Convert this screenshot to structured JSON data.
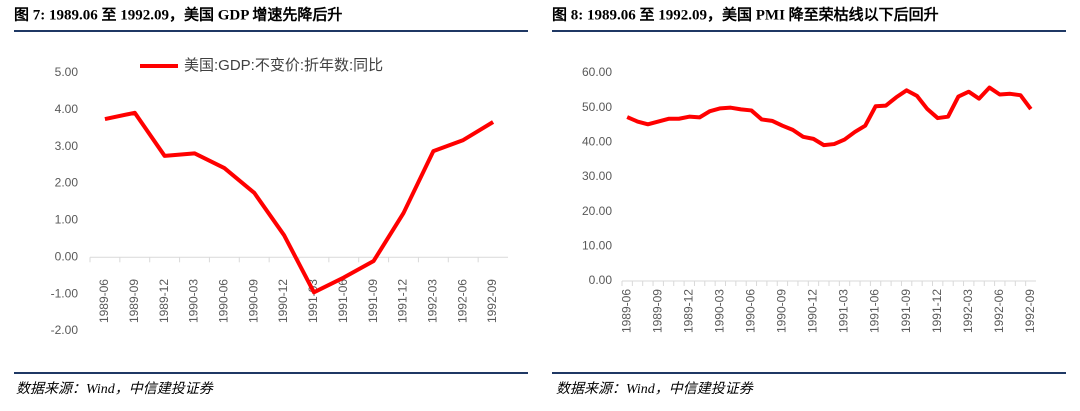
{
  "chart_data": [
    {
      "type": "line",
      "title": "图 7: 1989.06 至 1992.09，美国 GDP 增速先降后升",
      "source": "数据来源：Wind，中信建投证券",
      "categories": [
        "1989-06",
        "1989-09",
        "1989-12",
        "1990-03",
        "1990-06",
        "1990-09",
        "1990-12",
        "1991-03",
        "1991-06",
        "1991-09",
        "1991-12",
        "1992-03",
        "1992-06",
        "1992-09"
      ],
      "series": [
        {
          "name": "美国:GDP:不变价:折年数:同比",
          "color": "#ff0000",
          "values": [
            3.75,
            3.92,
            2.75,
            2.82,
            2.42,
            1.75,
            0.6,
            -0.95,
            -0.55,
            -0.1,
            1.2,
            2.88,
            3.18,
            3.67
          ]
        }
      ],
      "ylim": [
        -2,
        5
      ],
      "yticks": [
        {
          "value": -2,
          "label": "-2.00"
        },
        {
          "value": -1,
          "label": "-1.00"
        },
        {
          "value": 0,
          "label": "0.00"
        },
        {
          "value": 1,
          "label": "1.00"
        },
        {
          "value": 2,
          "label": "2.00"
        },
        {
          "value": 3,
          "label": "3.00"
        },
        {
          "value": 4,
          "label": "4.00"
        },
        {
          "value": 5,
          "label": "5.00"
        }
      ],
      "legend": "top"
    },
    {
      "type": "line",
      "title": "图 8: 1989.06 至 1992.09，美国 PMI 降至荣枯线以下后回升",
      "source": "数据来源：Wind，中信建投证券",
      "categories": [
        "1989-06",
        null,
        null,
        "1989-09",
        null,
        null,
        "1989-12",
        null,
        null,
        "1990-03",
        null,
        null,
        "1990-06",
        null,
        null,
        "1990-09",
        null,
        null,
        "1990-12",
        null,
        null,
        "1991-03",
        null,
        null,
        "1991-06",
        null,
        null,
        "1991-09",
        null,
        null,
        "1991-12",
        null,
        null,
        "1992-03",
        null,
        null,
        "1992-06",
        null,
        null,
        "1992-09"
      ],
      "series": [
        {
          "color": "#ff0000",
          "values": [
            47.3,
            46,
            45.2,
            46,
            46.8,
            46.8,
            47.4,
            47.2,
            49,
            49.8,
            50,
            49.5,
            49.2,
            46.6,
            46.2,
            44.8,
            43.6,
            41.6,
            41,
            39.2,
            39.5,
            40.8,
            43,
            44.8,
            50.4,
            50.6,
            53,
            55,
            53.4,
            49.6,
            47,
            47.4,
            53.2,
            54.6,
            52.6,
            55.8,
            53.8,
            54,
            53.6,
            49.6
          ]
        }
      ],
      "ylim": [
        0,
        60
      ],
      "yticks": [
        {
          "value": 0,
          "label": "0.00"
        },
        {
          "value": 10,
          "label": "10.00"
        },
        {
          "value": 20,
          "label": "20.00"
        },
        {
          "value": 30,
          "label": "30.00"
        },
        {
          "value": 40,
          "label": "40.00"
        },
        {
          "value": 50,
          "label": "50.00"
        },
        {
          "value": 60,
          "label": "60.00"
        }
      ]
    }
  ]
}
